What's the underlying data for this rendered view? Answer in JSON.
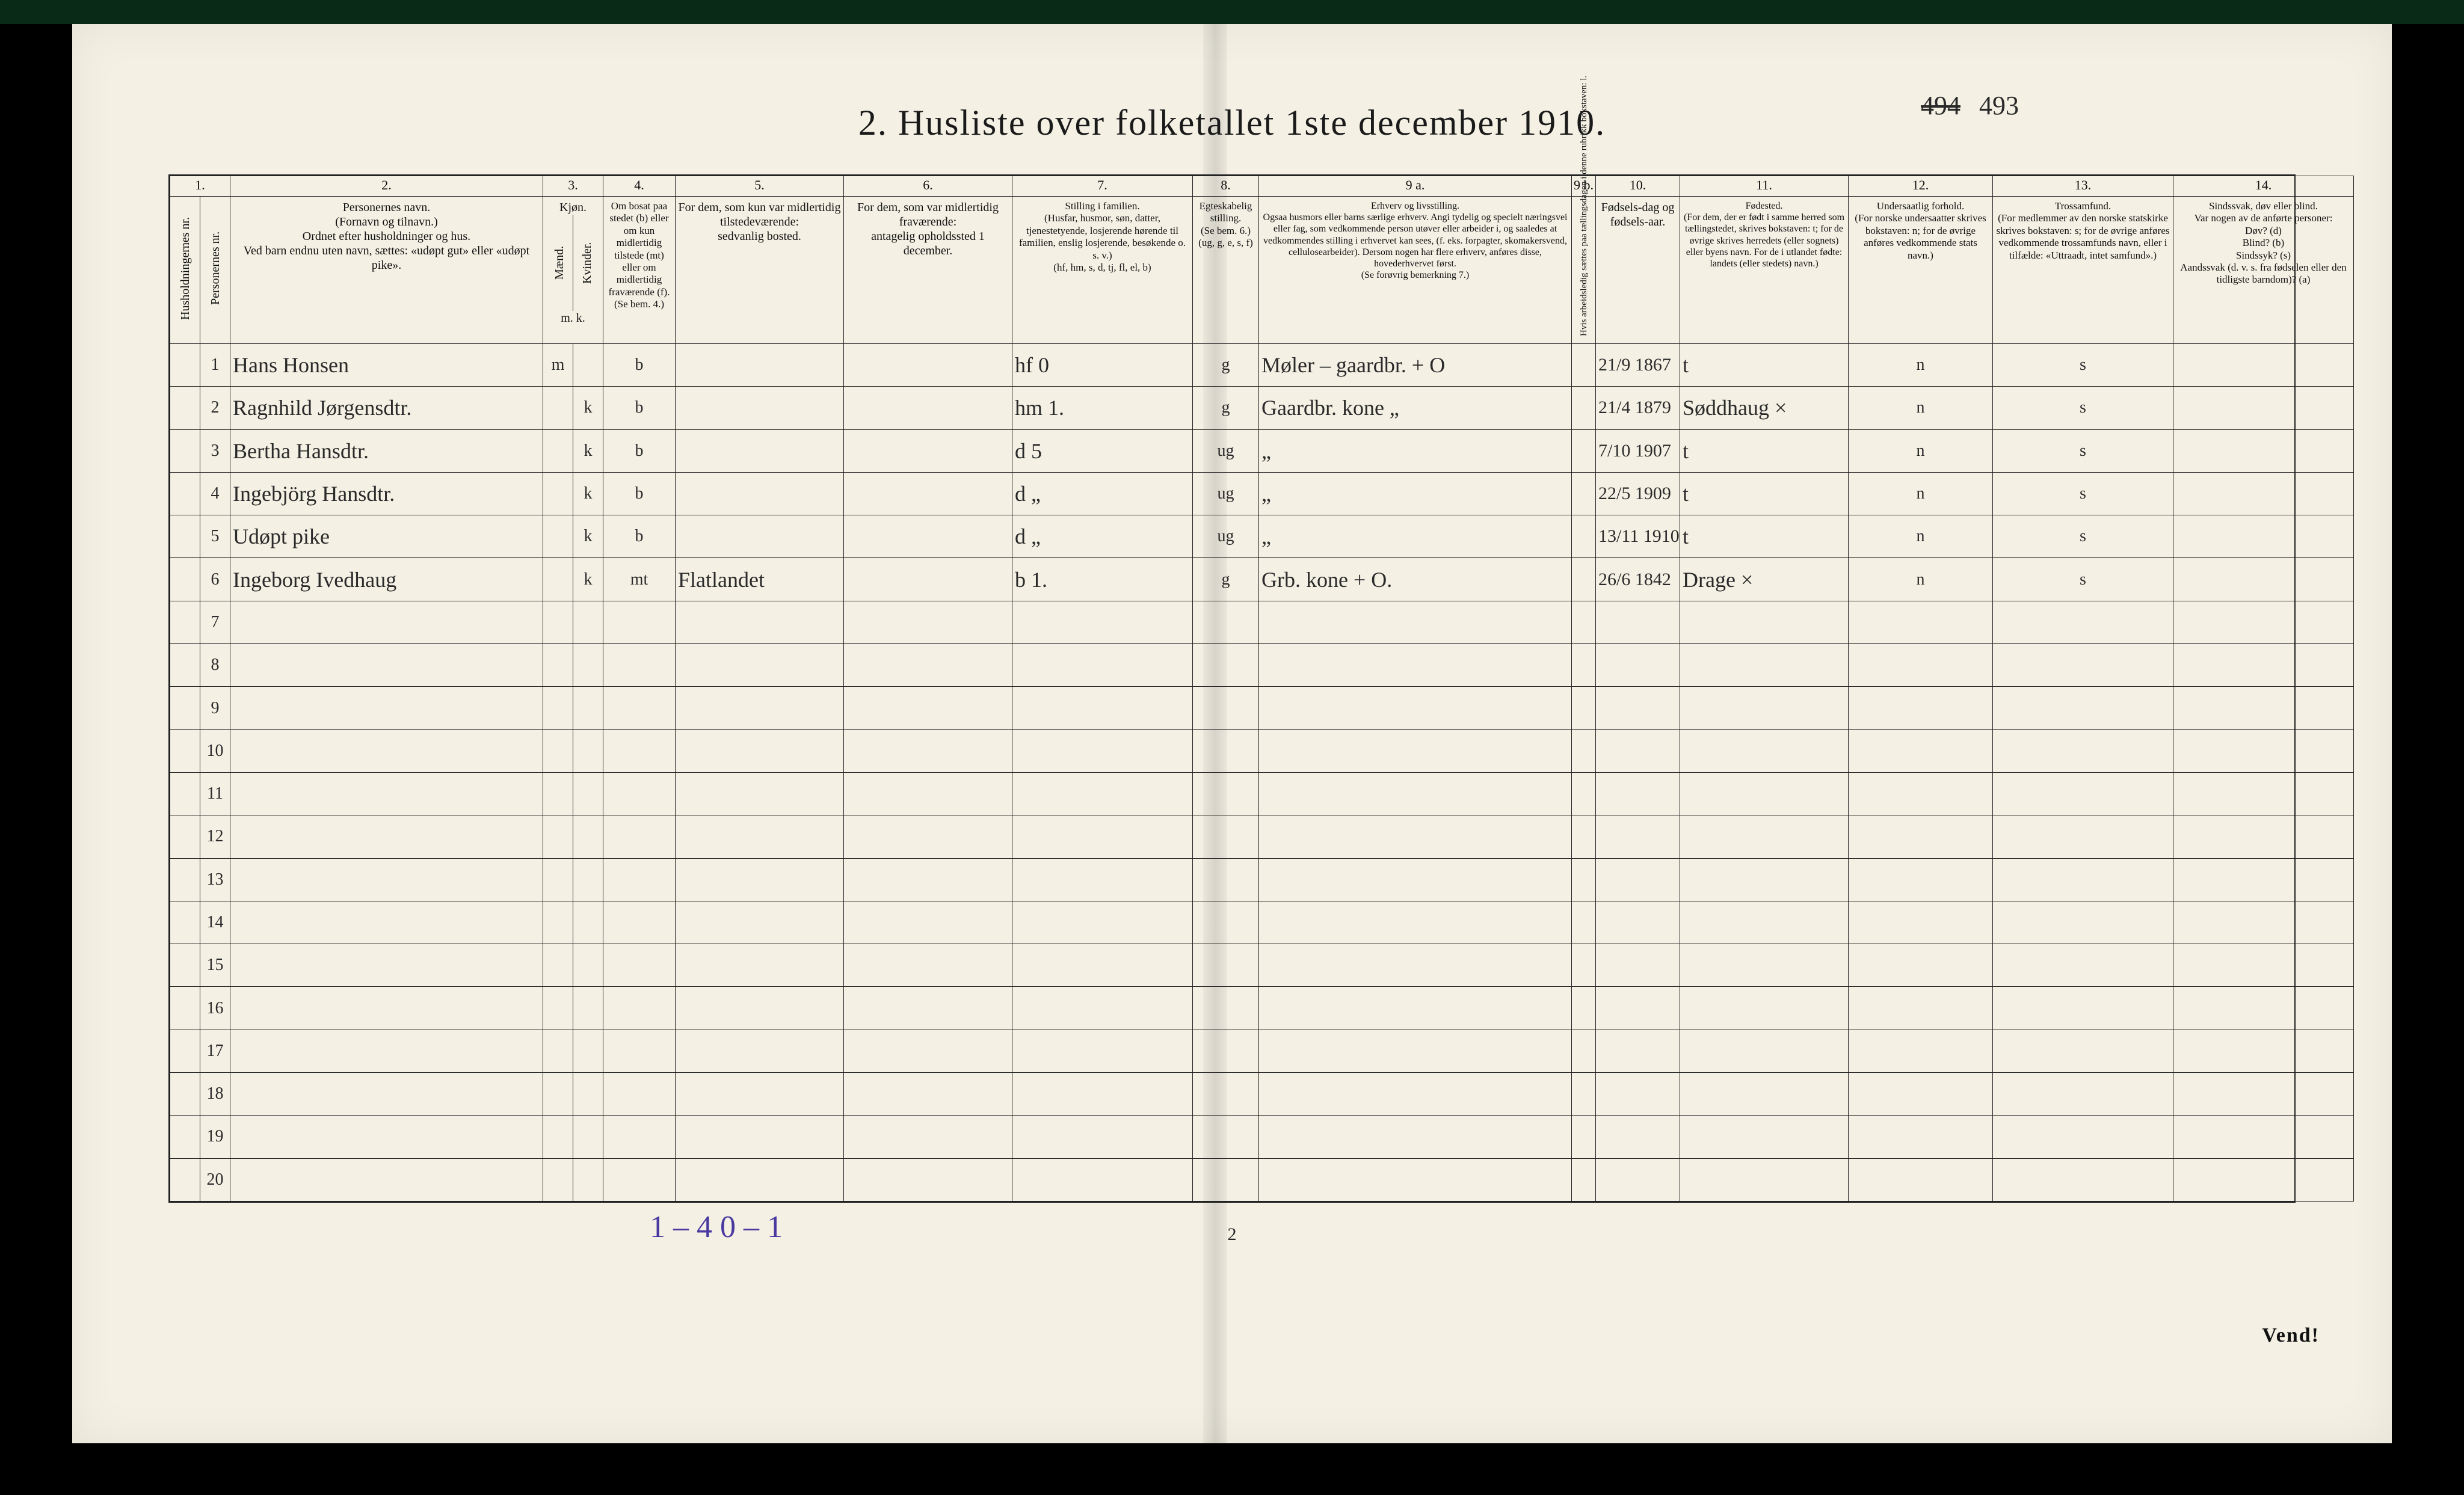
{
  "meta": {
    "title": "2.  Husliste over folketallet 1ste december 1910.",
    "page_annotation_struck": "494",
    "page_annotation": "493",
    "page_number_bottom": "2",
    "tally_note": "1 – 4    0 – 1",
    "turn_over": "Vend!"
  },
  "colors": {
    "paper": "#f4f0e4",
    "ink": "#1a1a1a",
    "handwriting": "#2a2a2a",
    "pencil_tally": "#4a3aa0",
    "scan_border": "#0a2a18",
    "outer": "#000000"
  },
  "columns": {
    "num_row": [
      "1.",
      "2.",
      "3.",
      "4.",
      "5.",
      "6.",
      "7.",
      "8.",
      "9 a.",
      "9 b.",
      "10.",
      "11.",
      "12.",
      "13.",
      "14."
    ],
    "headers": {
      "c1": "Husholdningernes nr.",
      "c2": "Personernes nr.",
      "c3": "Personernes navn.\n(Fornavn og tilnavn.)\nOrdnet efter husholdninger og hus.\nVed barn endnu uten navn, sættes: «udøpt gut» eller «udøpt pike».",
      "c4": "Kjøn.",
      "c4a": "Mænd.",
      "c4b": "Kvinder.",
      "c4sub": "m.  k.",
      "c5": "Om bosat paa stedet (b) eller om kun midlertidig tilstede (mt) eller om midlertidig fraværende (f).\n(Se bem. 4.)",
      "c6": "For dem, som kun var midlertidig tilstedeværende:\nsedvanlig bosted.",
      "c7": "For dem, som var midlertidig fraværende:\nantagelig opholdssted 1 december.",
      "c8": "Stilling i familien.\n(Husfar, husmor, søn, datter, tjenestetyende, losjerende hørende til familien, enslig losjerende, besøkende o. s. v.)\n(hf, hm, s, d, tj, fl, el, b)",
      "c9": "Egteskabelig stilling.\n(Se bem. 6.)\n(ug, g, e, s, f)",
      "c10": "Erhverv og livsstilling.\nOgsaa husmors eller barns særlige erhverv. Angi tydelig og specielt næringsvei eller fag, som vedkommende person utøver eller arbeider i, og saaledes at vedkommendes stilling i erhvervet kan sees, (f. eks. forpagter, skomakersvend, cellulosearbeider). Dersom nogen har flere erhverv, anføres disse, hovederhvervet først.\n(Se forøvrig bemerkning 7.)",
      "c11": "Hvis arbeidsledig sættes paa tællingsdagen i denne rubrikk bokstaven: l.",
      "c12": "Fødsels-dag og fødsels-aar.",
      "c13": "Fødested.\n(For dem, der er født i samme herred som tællingstedet, skrives bokstaven: t; for de øvrige skrives herredets (eller sognets) eller byens navn. For de i utlandet fødte: landets (eller stedets) navn.)",
      "c14": "Undersaatlig forhold.\n(For norske undersaatter skrives bokstaven: n; for de øvrige anføres vedkommende stats navn.)",
      "c15": "Trossamfund.\n(For medlemmer av den norske statskirke skrives bokstaven: s; for de øvrige anføres vedkommende trossamfunds navn, eller i tilfælde: «Uttraadt, intet samfund».)",
      "c16": "Sindssvak, døv eller blind.\nVar nogen av de anførte personer:\nDøv?     (d)\nBlind?   (b)\nSindssyk? (s)\nAandssvak (d. v. s. fra fødselen eller den tidligste barndom)? (a)"
    }
  },
  "rows": [
    {
      "n": "1",
      "name": "Hans Honsen",
      "sex": "m",
      "res": "b",
      "temp_present": "",
      "temp_absent": "",
      "fam_pos": "hf   0",
      "marital": "g",
      "occupation": "Møler – gaardbr.  + O",
      "labor": "",
      "birth": "21/9 1867",
      "birthplace": "t",
      "nationality": "n",
      "faith": "s",
      "disability": ""
    },
    {
      "n": "2",
      "name": "Ragnhild Jørgensdtr.",
      "sex": "k",
      "res": "b",
      "temp_present": "",
      "temp_absent": "",
      "fam_pos": "hm  1.",
      "marital": "g",
      "occupation": "Gaardbr. kone   „",
      "labor": "",
      "birth": "21/4 1879",
      "birthplace": "Søddhaug ×",
      "nationality": "n",
      "faith": "s",
      "disability": ""
    },
    {
      "n": "3",
      "name": "Bertha Hansdtr.",
      "sex": "k",
      "res": "b",
      "temp_present": "",
      "temp_absent": "",
      "fam_pos": "d   5",
      "marital": "ug",
      "occupation": "„",
      "labor": "",
      "birth": "7/10 1907",
      "birthplace": "t",
      "nationality": "n",
      "faith": "s",
      "disability": ""
    },
    {
      "n": "4",
      "name": "Ingebjörg Hansdtr.",
      "sex": "k",
      "res": "b",
      "temp_present": "",
      "temp_absent": "",
      "fam_pos": "d   „",
      "marital": "ug",
      "occupation": "„",
      "labor": "",
      "birth": "22/5 1909",
      "birthplace": "t",
      "nationality": "n",
      "faith": "s",
      "disability": ""
    },
    {
      "n": "5",
      "name": "Udøpt pike",
      "sex": "k",
      "res": "b",
      "temp_present": "",
      "temp_absent": "",
      "fam_pos": "d   „",
      "marital": "ug",
      "occupation": "„",
      "labor": "",
      "birth": "13/11 1910",
      "birthplace": "t",
      "nationality": "n",
      "faith": "s",
      "disability": ""
    },
    {
      "n": "6",
      "name": "Ingeborg Ivedhaug",
      "sex": "k",
      "res": "mt",
      "temp_present": "Flatlandet",
      "temp_absent": "",
      "fam_pos": "b   1.",
      "marital": "g",
      "occupation": "Grb. kone  + O.",
      "labor": "",
      "birth": "26/6 1842",
      "birthplace": "Drage ×",
      "nationality": "n",
      "faith": "s",
      "disability": ""
    }
  ],
  "empty_rows": [
    "7",
    "8",
    "9",
    "10",
    "11",
    "12",
    "13",
    "14",
    "15",
    "16",
    "17",
    "18",
    "19",
    "20"
  ]
}
